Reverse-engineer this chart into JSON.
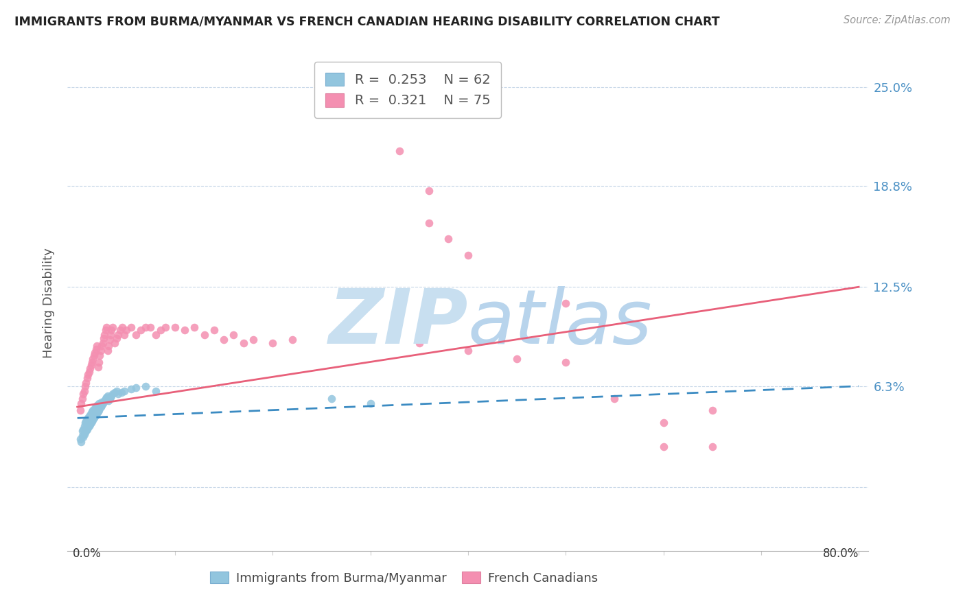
{
  "title": "IMMIGRANTS FROM BURMA/MYANMAR VS FRENCH CANADIAN HEARING DISABILITY CORRELATION CHART",
  "source": "Source: ZipAtlas.com",
  "ylabel": "Hearing Disability",
  "ytick_vals": [
    0.0,
    0.063,
    0.125,
    0.188,
    0.25
  ],
  "ytick_labels": [
    "",
    "6.3%",
    "12.5%",
    "18.8%",
    "25.0%"
  ],
  "xlim": [
    0.0,
    0.8
  ],
  "ylim": [
    -0.04,
    0.27
  ],
  "blue_color": "#92C5DE",
  "pink_color": "#F48FB1",
  "blue_line_color": "#3B8BC2",
  "pink_line_color": "#E8607A",
  "watermark_zip_color": "#C8DFF0",
  "watermark_atlas_color": "#B8D4EC",
  "legend_r_blue": "0.253",
  "legend_n_blue": "62",
  "legend_r_pink": "0.321",
  "legend_n_pink": "75",
  "blue_scatter_x": [
    0.003,
    0.004,
    0.005,
    0.005,
    0.006,
    0.006,
    0.007,
    0.007,
    0.008,
    0.008,
    0.009,
    0.009,
    0.01,
    0.01,
    0.011,
    0.011,
    0.012,
    0.012,
    0.013,
    0.013,
    0.014,
    0.014,
    0.015,
    0.015,
    0.016,
    0.016,
    0.017,
    0.018,
    0.018,
    0.019,
    0.019,
    0.02,
    0.02,
    0.021,
    0.022,
    0.022,
    0.023,
    0.024,
    0.025,
    0.025,
    0.026,
    0.027,
    0.028,
    0.029,
    0.03,
    0.031,
    0.032,
    0.033,
    0.034,
    0.035,
    0.036,
    0.038,
    0.04,
    0.042,
    0.045,
    0.048,
    0.055,
    0.06,
    0.07,
    0.08,
    0.26,
    0.3
  ],
  "blue_scatter_y": [
    0.03,
    0.028,
    0.032,
    0.035,
    0.031,
    0.036,
    0.033,
    0.038,
    0.034,
    0.04,
    0.035,
    0.041,
    0.036,
    0.042,
    0.037,
    0.043,
    0.038,
    0.044,
    0.039,
    0.045,
    0.04,
    0.046,
    0.041,
    0.047,
    0.042,
    0.048,
    0.043,
    0.044,
    0.049,
    0.045,
    0.05,
    0.046,
    0.051,
    0.047,
    0.048,
    0.052,
    0.049,
    0.05,
    0.051,
    0.053,
    0.052,
    0.053,
    0.054,
    0.055,
    0.056,
    0.057,
    0.054,
    0.055,
    0.056,
    0.057,
    0.058,
    0.059,
    0.06,
    0.058,
    0.059,
    0.06,
    0.061,
    0.062,
    0.063,
    0.06,
    0.055,
    0.052
  ],
  "pink_scatter_x": [
    0.003,
    0.004,
    0.005,
    0.006,
    0.007,
    0.008,
    0.009,
    0.01,
    0.011,
    0.012,
    0.013,
    0.014,
    0.015,
    0.016,
    0.017,
    0.018,
    0.019,
    0.02,
    0.021,
    0.022,
    0.023,
    0.024,
    0.025,
    0.026,
    0.027,
    0.028,
    0.029,
    0.03,
    0.031,
    0.032,
    0.033,
    0.034,
    0.035,
    0.036,
    0.038,
    0.04,
    0.042,
    0.044,
    0.046,
    0.048,
    0.05,
    0.055,
    0.06,
    0.065,
    0.07,
    0.075,
    0.08,
    0.085,
    0.09,
    0.1,
    0.11,
    0.12,
    0.13,
    0.14,
    0.15,
    0.16,
    0.17,
    0.18,
    0.2,
    0.22,
    0.35,
    0.4,
    0.45,
    0.5,
    0.55,
    0.6,
    0.65,
    0.33,
    0.36,
    0.36,
    0.38,
    0.4,
    0.5,
    0.6,
    0.65
  ],
  "pink_scatter_y": [
    0.048,
    0.052,
    0.055,
    0.058,
    0.06,
    0.063,
    0.065,
    0.068,
    0.07,
    0.072,
    0.074,
    0.076,
    0.078,
    0.08,
    0.082,
    0.084,
    0.086,
    0.088,
    0.075,
    0.078,
    0.082,
    0.085,
    0.088,
    0.09,
    0.093,
    0.095,
    0.098,
    0.1,
    0.085,
    0.088,
    0.092,
    0.095,
    0.098,
    0.1,
    0.09,
    0.093,
    0.095,
    0.098,
    0.1,
    0.095,
    0.098,
    0.1,
    0.095,
    0.098,
    0.1,
    0.1,
    0.095,
    0.098,
    0.1,
    0.1,
    0.098,
    0.1,
    0.095,
    0.098,
    0.092,
    0.095,
    0.09,
    0.092,
    0.09,
    0.092,
    0.09,
    0.085,
    0.08,
    0.078,
    0.055,
    0.025,
    0.048,
    0.21,
    0.185,
    0.165,
    0.155,
    0.145,
    0.115,
    0.04,
    0.025
  ],
  "blue_trend_x0": 0.0,
  "blue_trend_x1": 0.8,
  "blue_trend_y0": 0.043,
  "blue_trend_y1": 0.063,
  "pink_trend_x0": 0.0,
  "pink_trend_x1": 0.8,
  "pink_trend_y0": 0.05,
  "pink_trend_y1": 0.125
}
